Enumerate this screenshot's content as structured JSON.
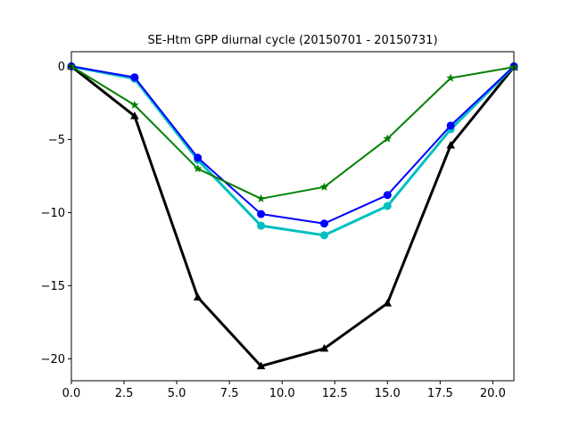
{
  "chart_data": {
    "type": "line",
    "title": "SE-Htm GPP diurnal cycle (20150701 - 20150731)",
    "xlabel": "",
    "ylabel": "",
    "xlim": [
      0,
      21
    ],
    "ylim": [
      -21.5,
      1.0
    ],
    "xticks": [
      0.0,
      2.5,
      5.0,
      7.5,
      10.0,
      12.5,
      15.0,
      17.5,
      20.0
    ],
    "xtick_labels": [
      "0.0",
      "2.5",
      "5.0",
      "7.5",
      "10.0",
      "12.5",
      "15.0",
      "17.5",
      "20.0"
    ],
    "yticks": [
      0,
      -5,
      -10,
      -15,
      -20
    ],
    "ytick_labels": [
      "0",
      "−5",
      "−10",
      "−15",
      "−20"
    ],
    "grid": false,
    "x": [
      0,
      3,
      6,
      9,
      12,
      15,
      18,
      21
    ],
    "series": [
      {
        "color": "#000000",
        "marker": "triangle",
        "linewidth": 3,
        "values": [
          0.0,
          -3.4,
          -15.8,
          -20.5,
          -19.3,
          -16.2,
          -5.4,
          -0.05
        ]
      },
      {
        "color": "#00bfbf",
        "marker": "circle",
        "linewidth": 3,
        "values": [
          0.0,
          -0.85,
          -6.4,
          -10.9,
          -11.55,
          -9.55,
          -4.3,
          0.0
        ]
      },
      {
        "color": "#0000ff",
        "marker": "circle",
        "linewidth": 2,
        "values": [
          0.0,
          -0.75,
          -6.25,
          -10.1,
          -10.75,
          -8.8,
          -4.05,
          0.0
        ]
      },
      {
        "color": "#008000",
        "marker": "star",
        "linewidth": 2,
        "values": [
          0.0,
          -2.65,
          -7.0,
          -9.05,
          -8.25,
          -4.95,
          -0.8,
          -0.05
        ]
      }
    ]
  }
}
